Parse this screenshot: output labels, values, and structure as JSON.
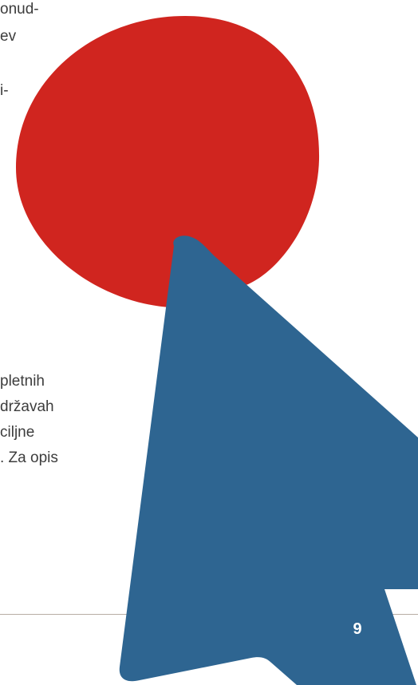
{
  "body_text": {
    "line_1": "onud-",
    "line_2": "ev",
    "line_3": "i-",
    "line_4": "pletnih",
    "line_5": "državah",
    "line_6": "ciljne",
    "line_7": ". Za opis"
  },
  "graphics": {
    "red_circle_color": "#d0251f",
    "blue_cursor_color": "#2e6591",
    "rule_color": "#b8ada4"
  },
  "footer": {
    "page_number": "9"
  }
}
